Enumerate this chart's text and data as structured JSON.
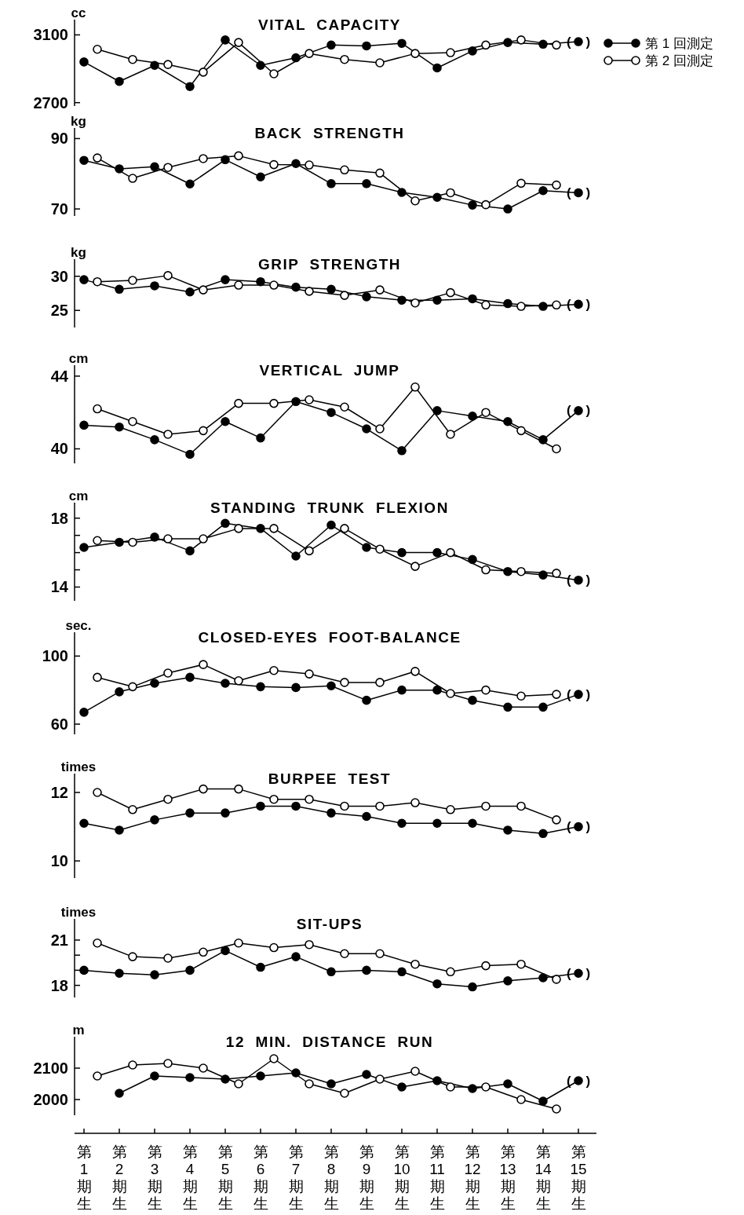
{
  "chart_data": [
    {
      "type": "line",
      "title": "VITAL CAPACITY",
      "ylabel": "cc",
      "categories": [
        "第1期生",
        "第2期生",
        "第3期生",
        "第4期生",
        "第5期生",
        "第6期生",
        "第7期生",
        "第8期生",
        "第9期生",
        "第10期生",
        "第11期生",
        "第12期生",
        "第13期生",
        "第14期生",
        "第15期生"
      ],
      "ylim": [
        2680,
        3190
      ],
      "yticks": [
        2700,
        3100
      ],
      "marker": "circle",
      "tick_labels": "y",
      "legend": "top right",
      "series": [
        {
          "name": "第 1 回測定",
          "color": "#000000",
          "values": [
            2940,
            2825,
            2920,
            2795,
            3070,
            2920,
            2965,
            3040,
            3035,
            3050,
            2905,
            3005,
            3055,
            3045,
            3060
          ]
        },
        {
          "name": "第 2 回測定",
          "color": "#000000",
          "values": [
            3015,
            2955,
            2925,
            2880,
            3055,
            2870,
            2990,
            2955,
            2935,
            2990,
            2995,
            3040,
            3070,
            3040,
            null
          ]
        }
      ],
      "annotations": [
        {
          "text": "(    )",
          "x": "第15期生",
          "y": 3060
        }
      ]
    },
    {
      "type": "line",
      "title": "BACK STRENGTH",
      "ylabel": "kg",
      "categories": [
        "第1期生",
        "第2期生",
        "第3期生",
        "第4期生",
        "第5期生",
        "第6期生",
        "第7期生",
        "第8期生",
        "第9期生",
        "第10期生",
        "第11期生",
        "第12期生",
        "第13期生",
        "第14期生",
        "第15期生"
      ],
      "ylim": [
        68,
        93
      ],
      "yticks": [
        70,
        90
      ],
      "marker": "circle",
      "tick_labels": "y",
      "series": [
        {
          "color": "#000000",
          "values": [
            83.8,
            81.4,
            82,
            77.1,
            84,
            79.1,
            82.9,
            77.2,
            77.2,
            74.7,
            73.3,
            71.1,
            70,
            75.2,
            74.6
          ]
        },
        {
          "color": "#000000",
          "values": [
            84.5,
            78.7,
            81.8,
            84.3,
            85.1,
            82.6,
            82.5,
            81.1,
            80.2,
            72.3,
            74.6,
            71.2,
            77.3,
            76.8,
            null
          ]
        }
      ],
      "annotations": [
        {
          "text": "(    )",
          "x": "第15期生",
          "y": 74.6
        }
      ]
    },
    {
      "type": "line",
      "title": "GRIP STRENGTH",
      "ylabel": "kg",
      "categories": [
        "第1期生",
        "第2期生",
        "第3期生",
        "第4期生",
        "第5期生",
        "第6期生",
        "第7期生",
        "第8期生",
        "第9期生",
        "第10期生",
        "第11期生",
        "第12期生",
        "第13期生",
        "第14期生",
        "第15期生"
      ],
      "ylim": [
        22.5,
        32.5
      ],
      "yticks": [
        25,
        30
      ],
      "marker": "circle",
      "tick_labels": "y",
      "series": [
        {
          "color": "#000000",
          "values": [
            29.5,
            28.1,
            28.6,
            27.7,
            29.5,
            29.2,
            28.4,
            28.1,
            27,
            26.5,
            26.5,
            26.7,
            26,
            25.6,
            25.9
          ]
        },
        {
          "color": "#000000",
          "values": [
            29.2,
            29.4,
            30.1,
            28,
            28.7,
            28.7,
            27.8,
            27.2,
            28,
            26.1,
            27.6,
            25.8,
            25.6,
            25.8,
            null
          ]
        }
      ],
      "annotations": [
        {
          "text": "(    )",
          "x": "第15期生",
          "y": 25.9
        }
      ]
    },
    {
      "type": "line",
      "title": "VERTICAL JUMP",
      "ylabel": "cm",
      "categories": [
        "第1期生",
        "第2期生",
        "第3期生",
        "第4期生",
        "第5期生",
        "第6期生",
        "第7期生",
        "第8期生",
        "第9期生",
        "第10期生",
        "第11期生",
        "第12期生",
        "第13期生",
        "第14期生",
        "第15期生"
      ],
      "ylim": [
        39.2,
        44.6
      ],
      "yticks": [
        40,
        44
      ],
      "marker": "circle",
      "tick_labels": "y",
      "series": [
        {
          "color": "#000000",
          "values": [
            41.3,
            41.2,
            40.5,
            39.7,
            41.5,
            40.6,
            42.6,
            42,
            41.1,
            39.9,
            42.1,
            41.8,
            41.5,
            40.5,
            42.1
          ]
        },
        {
          "color": "#000000",
          "values": [
            42.2,
            41.5,
            40.8,
            41,
            42.5,
            42.5,
            42.7,
            42.3,
            41.1,
            43.4,
            40.8,
            42,
            41,
            40,
            null
          ]
        }
      ],
      "annotations": [
        {
          "text": "(    )",
          "x": "第15期生",
          "y": 42.1
        }
      ]
    },
    {
      "type": "line",
      "title": "STANDING TRUNK FLEXION",
      "ylabel": "cm",
      "categories": [
        "第1期生",
        "第2期生",
        "第3期生",
        "第4期生",
        "第5期生",
        "第6期生",
        "第7期生",
        "第8期生",
        "第9期生",
        "第10期生",
        "第11期生",
        "第12期生",
        "第13期生",
        "第14期生",
        "第15期生"
      ],
      "ylim": [
        13.2,
        18.9
      ],
      "yticks": [
        14,
        {
          "value": 15,
          "label": null
        },
        {
          "value": 16,
          "label": null
        },
        {
          "value": 17,
          "label": null
        },
        18
      ],
      "marker": "circle",
      "tick_labels": "y",
      "series": [
        {
          "color": "#000000",
          "values": [
            16.3,
            16.6,
            16.9,
            16.1,
            17.7,
            17.4,
            15.8,
            17.6,
            16.3,
            16,
            16,
            15.6,
            14.9,
            14.7,
            14.4
          ]
        },
        {
          "color": "#000000",
          "values": [
            16.7,
            16.6,
            16.8,
            16.8,
            17.4,
            17.4,
            16.1,
            17.4,
            16.2,
            15.2,
            16,
            15,
            14.9,
            14.8,
            null
          ]
        }
      ],
      "annotations": [
        {
          "text": "(    )",
          "x": "第15期生",
          "y": 14.4
        }
      ]
    },
    {
      "type": "line",
      "title": "CLOSED-EYES FOOT-BALANCE",
      "ylabel": "sec.",
      "categories": [
        "第1期生",
        "第2期生",
        "第3期生",
        "第4期生",
        "第5期生",
        "第6期生",
        "第7期生",
        "第8期生",
        "第9期生",
        "第10期生",
        "第11期生",
        "第12期生",
        "第13期生",
        "第14期生",
        "第15期生"
      ],
      "ylim": [
        54,
        114
      ],
      "yticks": [
        60,
        100
      ],
      "marker": "circle",
      "tick_labels": "y",
      "series": [
        {
          "color": "#000000",
          "values": [
            67,
            79,
            84,
            87.5,
            84,
            82,
            81.5,
            82.5,
            74,
            80,
            80,
            74,
            70,
            70,
            77.5
          ]
        },
        {
          "color": "#000000",
          "values": [
            87.5,
            82,
            90,
            95,
            85.5,
            91.5,
            89.5,
            84.5,
            84.5,
            91,
            78,
            80,
            76.5,
            77.5,
            null
          ]
        }
      ],
      "annotations": [
        {
          "text": "(    )",
          "x": "第15期生",
          "y": 77.5
        }
      ]
    },
    {
      "type": "line",
      "title": "BURPEE TEST",
      "ylabel": "times",
      "categories": [
        "第1期生",
        "第2期生",
        "第3期生",
        "第4期生",
        "第5期生",
        "第6期生",
        "第7期生",
        "第8期生",
        "第9期生",
        "第10期生",
        "第11期生",
        "第12期生",
        "第13期生",
        "第14期生",
        "第15期生"
      ],
      "ylim": [
        9.5,
        12.55
      ],
      "yticks": [
        10,
        12
      ],
      "marker": "circle",
      "tick_labels": "y",
      "series": [
        {
          "color": "#000000",
          "values": [
            11.1,
            10.9,
            11.2,
            11.4,
            11.4,
            11.6,
            11.6,
            11.4,
            11.3,
            11.1,
            11.1,
            11.1,
            10.9,
            10.8,
            11
          ]
        },
        {
          "color": "#000000",
          "values": [
            12,
            11.5,
            11.8,
            12.1,
            12.1,
            11.8,
            11.8,
            11.6,
            11.6,
            11.7,
            11.5,
            11.6,
            11.6,
            11.2,
            null
          ]
        }
      ],
      "annotations": [
        {
          "text": "(    )",
          "x": "第15期生",
          "y": 11
        }
      ]
    },
    {
      "type": "line",
      "title": "SIT-UPS",
      "ylabel": "times",
      "categories": [
        "第1期生",
        "第2期生",
        "第3期生",
        "第4期生",
        "第5期生",
        "第6期生",
        "第7期生",
        "第8期生",
        "第9期生",
        "第10期生",
        "第11期生",
        "第12期生",
        "第13期生",
        "第14期生",
        "第15期生"
      ],
      "ylim": [
        17.2,
        22.4
      ],
      "yticks": [
        18,
        {
          "value": 19,
          "label": null
        },
        {
          "value": 20,
          "label": null
        },
        21
      ],
      "marker": "circle",
      "tick_labels": "y",
      "series": [
        {
          "color": "#000000",
          "values": [
            19,
            18.8,
            18.7,
            19,
            20.3,
            19.2,
            19.9,
            18.9,
            19,
            18.9,
            18.1,
            17.9,
            18.3,
            18.5,
            18.8
          ]
        },
        {
          "color": "#000000",
          "values": [
            20.8,
            19.9,
            19.8,
            20.2,
            20.8,
            20.5,
            20.7,
            20.1,
            20.1,
            19.4,
            18.9,
            19.3,
            19.4,
            18.4,
            null
          ]
        }
      ],
      "annotations": [
        {
          "text": "(    )",
          "x": "第15期生",
          "y": 18.8
        }
      ]
    },
    {
      "type": "line",
      "title": "12 MIN. DISTANCE RUN",
      "ylabel": "m",
      "categories": [
        "第1期生",
        "第2期生",
        "第3期生",
        "第4期生",
        "第5期生",
        "第6期生",
        "第7期生",
        "第8期生",
        "第9期生",
        "第10期生",
        "第11期生",
        "第12期生",
        "第13期生",
        "第14期生",
        "第15期生"
      ],
      "ylim": [
        1950,
        2200
      ],
      "yticks": [
        2000,
        2100
      ],
      "marker": "circle",
      "series": [
        {
          "color": "#000000",
          "values": [
            null,
            2020,
            2075,
            2070,
            2065,
            2075,
            2085,
            2050,
            2080,
            2040,
            2060,
            2035,
            2050,
            1995,
            2060
          ]
        },
        {
          "color": "#000000",
          "values": [
            2075,
            2110,
            2115,
            2100,
            2050,
            2130,
            2050,
            2020,
            2065,
            2090,
            2040,
            2040,
            2000,
            1970,
            null
          ]
        }
      ],
      "annotations": [
        {
          "text": "(    )",
          "x": "第15期生",
          "y": 2060
        }
      ]
    }
  ]
}
